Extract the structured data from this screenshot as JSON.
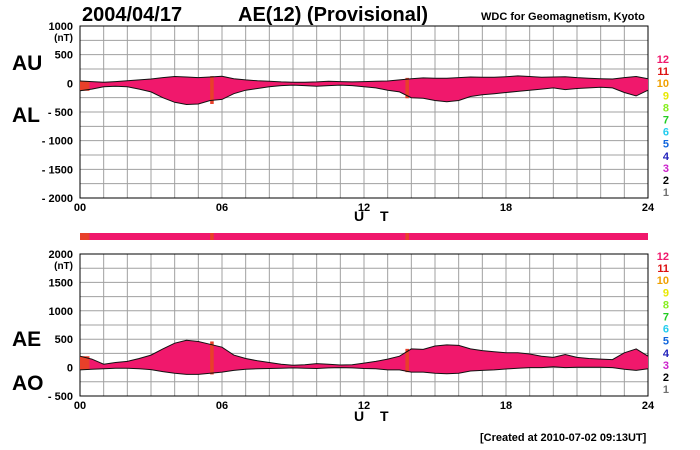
{
  "header": {
    "date": "2004/04/17",
    "title": "AE(12) (Provisional)",
    "source": "WDC for Geomagnetism, Kyoto",
    "created": "[Created at 2010-07-02 09:13UT]"
  },
  "station_count_legend": [
    "12",
    "11",
    "10",
    "9",
    "8",
    "7",
    "6",
    "5",
    "4",
    "3",
    "2",
    "1"
  ],
  "colors": {
    "fill": "#f0186c",
    "fill_low": "#e8402a",
    "grid": "#a0a0a0",
    "legend": [
      "#f0186c",
      "#dd1111",
      "#f0a000",
      "#e8e800",
      "#88ee22",
      "#22cc22",
      "#22ccee",
      "#1166dd",
      "#2222bb",
      "#cc22cc",
      "#000000",
      "#707070",
      "#a8a8a8"
    ]
  },
  "chart_data": [
    {
      "type": "area",
      "panel": "AU/AL",
      "labels": {
        "upper": "AU",
        "lower": "AL"
      },
      "unit": "(nT)",
      "xlabel": "U T",
      "ylim": [
        -2000,
        1000
      ],
      "yticks": [
        1000,
        500,
        0,
        -500,
        -1000,
        -1500,
        -2000
      ],
      "ytick_labels": [
        "1000",
        "500",
        "0",
        "- 500",
        "- 1000",
        "- 1500",
        "- 2000"
      ],
      "xlim": [
        0,
        24
      ],
      "xticks": [
        0,
        6,
        12,
        18,
        24
      ],
      "xtick_labels": [
        "00",
        "06",
        "12",
        "18",
        "24"
      ],
      "grid": true,
      "series": [
        {
          "name": "AU",
          "x": [
            0,
            0.5,
            1,
            1.5,
            2,
            2.5,
            3,
            3.5,
            4,
            4.5,
            5,
            5.5,
            6,
            6.5,
            7,
            7.5,
            8,
            8.5,
            9,
            9.5,
            10,
            10.5,
            11,
            11.5,
            12,
            12.5,
            13,
            13.5,
            14,
            14.5,
            15,
            15.5,
            16,
            16.5,
            17,
            17.5,
            18,
            18.5,
            19,
            19.5,
            20,
            20.5,
            21,
            21.5,
            22,
            22.5,
            23,
            23.5,
            24
          ],
          "values": [
            40,
            30,
            20,
            30,
            45,
            60,
            75,
            100,
            120,
            110,
            100,
            110,
            125,
            80,
            60,
            45,
            35,
            25,
            20,
            20,
            25,
            35,
            30,
            25,
            30,
            35,
            40,
            60,
            80,
            95,
            90,
            90,
            100,
            110,
            105,
            105,
            115,
            130,
            120,
            105,
            110,
            115,
            100,
            90,
            80,
            75,
            100,
            120,
            80
          ]
        },
        {
          "name": "AL",
          "x": [
            0,
            0.5,
            1,
            1.5,
            2,
            2.5,
            3,
            3.5,
            4,
            4.5,
            5,
            5.5,
            6,
            6.5,
            7,
            7.5,
            8,
            8.5,
            9,
            9.5,
            10,
            10.5,
            11,
            11.5,
            12,
            12.5,
            13,
            13.5,
            14,
            14.5,
            15,
            15.5,
            16,
            16.5,
            17,
            17.5,
            18,
            18.5,
            19,
            19.5,
            20,
            20.5,
            21,
            21.5,
            22,
            22.5,
            23,
            23.5,
            24
          ],
          "values": [
            -130,
            -100,
            -60,
            -50,
            -60,
            -100,
            -150,
            -250,
            -330,
            -370,
            -360,
            -300,
            -280,
            -180,
            -120,
            -90,
            -60,
            -40,
            -30,
            -40,
            -50,
            -40,
            -30,
            -40,
            -60,
            -80,
            -120,
            -150,
            -250,
            -260,
            -300,
            -320,
            -300,
            -230,
            -200,
            -180,
            -160,
            -140,
            -120,
            -100,
            -80,
            -110,
            -90,
            -80,
            -70,
            -80,
            -160,
            -220,
            -120
          ]
        }
      ],
      "station_bands": [
        {
          "start": 0,
          "end": 0.4,
          "stations": 11
        },
        {
          "start": 5.5,
          "end": 5.65,
          "stations": 11
        },
        {
          "start": 13.75,
          "end": 13.9,
          "stations": 11
        }
      ]
    },
    {
      "type": "area",
      "panel": "AE/AO",
      "labels": {
        "upper": "AE",
        "lower": "AO"
      },
      "unit": "(nT)",
      "xlabel": "U T",
      "ylim": [
        -500,
        2000
      ],
      "yticks": [
        2000,
        1500,
        1000,
        500,
        0,
        -500
      ],
      "ytick_labels": [
        "2000",
        "1500",
        "1000",
        "500",
        "0",
        "- 500"
      ],
      "xlim": [
        0,
        24
      ],
      "xticks": [
        0,
        6,
        12,
        18,
        24
      ],
      "xtick_labels": [
        "00",
        "06",
        "12",
        "18",
        "24"
      ],
      "grid": true,
      "series": [
        {
          "name": "AE",
          "x": [
            0,
            0.5,
            1,
            1.5,
            2,
            2.5,
            3,
            3.5,
            4,
            4.5,
            5,
            5.5,
            6,
            6.5,
            7,
            7.5,
            8,
            8.5,
            9,
            9.5,
            10,
            10.5,
            11,
            11.5,
            12,
            12.5,
            13,
            13.5,
            14,
            14.5,
            15,
            15.5,
            16,
            16.5,
            17,
            17.5,
            18,
            18.5,
            19,
            19.5,
            20,
            20.5,
            21,
            21.5,
            22,
            22.5,
            23,
            23.5,
            24
          ],
          "values": [
            200,
            150,
            60,
            90,
            110,
            160,
            220,
            330,
            430,
            480,
            460,
            410,
            360,
            220,
            160,
            120,
            90,
            60,
            40,
            50,
            70,
            60,
            45,
            50,
            80,
            110,
            150,
            200,
            330,
            320,
            380,
            400,
            390,
            330,
            300,
            280,
            260,
            260,
            240,
            200,
            180,
            230,
            180,
            160,
            150,
            140,
            260,
            330,
            200
          ]
        },
        {
          "name": "AO",
          "x": [
            0,
            0.5,
            1,
            1.5,
            2,
            2.5,
            3,
            3.5,
            4,
            4.5,
            5,
            5.5,
            6,
            6.5,
            7,
            7.5,
            8,
            8.5,
            9,
            9.5,
            10,
            10.5,
            11,
            11.5,
            12,
            12.5,
            13,
            13.5,
            14,
            14.5,
            15,
            15.5,
            16,
            16.5,
            17,
            17.5,
            18,
            18.5,
            19,
            19.5,
            20,
            20.5,
            21,
            21.5,
            22,
            22.5,
            23,
            23.5,
            24
          ],
          "values": [
            -40,
            -30,
            -20,
            -10,
            -10,
            -20,
            -35,
            -70,
            -100,
            -120,
            -120,
            -100,
            -80,
            -50,
            -30,
            -20,
            -15,
            -10,
            -5,
            -10,
            -15,
            -5,
            0,
            -5,
            -15,
            -20,
            -40,
            -40,
            -80,
            -80,
            -100,
            -110,
            -100,
            -60,
            -50,
            -40,
            -25,
            -10,
            0,
            0,
            15,
            0,
            5,
            5,
            5,
            0,
            -30,
            -50,
            -20
          ]
        }
      ],
      "station_bands": [
        {
          "start": 0,
          "end": 0.4,
          "stations": 11
        },
        {
          "start": 5.5,
          "end": 5.65,
          "stations": 11
        },
        {
          "start": 13.75,
          "end": 13.9,
          "stations": 11
        }
      ]
    }
  ]
}
